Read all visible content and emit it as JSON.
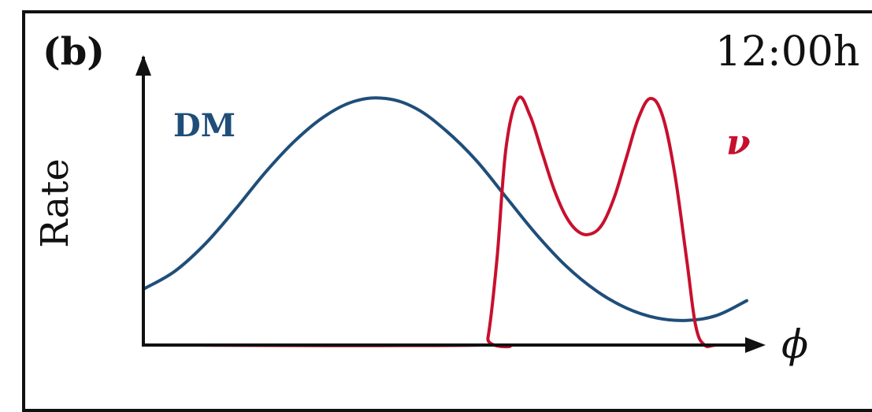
{
  "panel_label": "(b)",
  "time_label": "12:00h",
  "chart_data": {
    "type": "line",
    "title": "",
    "xlabel": "ϕ",
    "ylabel": "Rate",
    "xlim": [
      0,
      1
    ],
    "ylim": [
      0,
      1
    ],
    "grid": false,
    "legend": "none",
    "series": [
      {
        "name": "DM",
        "color": "#1f4e79",
        "x": [
          0.0,
          0.05,
          0.1,
          0.15,
          0.2,
          0.25,
          0.3,
          0.35,
          0.4,
          0.45,
          0.5,
          0.55,
          0.6,
          0.65,
          0.7,
          0.75,
          0.8,
          0.85,
          0.9,
          0.95,
          1.0
        ],
        "y": [
          0.23,
          0.3,
          0.41,
          0.55,
          0.7,
          0.83,
          0.93,
          0.99,
          1.0,
          0.96,
          0.87,
          0.75,
          0.6,
          0.45,
          0.32,
          0.22,
          0.15,
          0.11,
          0.1,
          0.12,
          0.18
        ]
      },
      {
        "name": "ν",
        "color": "#c8102e",
        "x": [
          0.0,
          0.56,
          0.57,
          0.585,
          0.6,
          0.62,
          0.64,
          0.66,
          0.68,
          0.7,
          0.72,
          0.74,
          0.76,
          0.78,
          0.8,
          0.82,
          0.84,
          0.86,
          0.88,
          0.9,
          0.915,
          0.93,
          0.95,
          1.0
        ],
        "y": [
          0.0,
          0.0,
          0.03,
          0.35,
          0.8,
          1.0,
          0.93,
          0.78,
          0.63,
          0.52,
          0.46,
          0.45,
          0.49,
          0.6,
          0.76,
          0.92,
          1.0,
          0.93,
          0.7,
          0.35,
          0.08,
          0.0,
          0.0,
          0.0
        ]
      }
    ]
  }
}
